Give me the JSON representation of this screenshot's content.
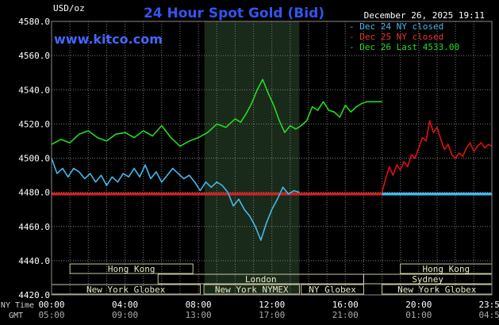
{
  "chart_data": {
    "type": "line",
    "title": "24 Hour Spot Gold (Bid)",
    "watermark": "www.kitco.com",
    "timestamp": "December 26, 2025 19:11",
    "ylabel": "USD/oz",
    "ylim": [
      4420,
      4580
    ],
    "y_ticks": [
      "4580.0",
      "4560.0",
      "4540.0",
      "4520.0",
      "4500.0",
      "4480.0",
      "4460.0",
      "4440.0",
      "4420.0"
    ],
    "x_hours": [
      0,
      4,
      8,
      12,
      16,
      20,
      23.983
    ],
    "x_ticks_ny": [
      "00:00",
      "04:00",
      "08:00",
      "12:00",
      "16:00",
      "20:00",
      "23:59"
    ],
    "x_ticks_gmt": [
      "05:00",
      "09:00",
      "13:00",
      "17:00",
      "21:00",
      "01:00",
      "04:59"
    ],
    "row_label_ny": "NY Time",
    "row_label_gmt": "GMT",
    "grid": true,
    "legend_position": "top-right",
    "highlight_hours": [
      8.33,
      13.5
    ],
    "colors": {
      "dec24": "#44b8ea",
      "dec25": "#dd1111",
      "dec26": "#22dd22",
      "baseline": "#cc2222",
      "grid": "#7a7a7a",
      "highlight": "#1a2a1a",
      "title": "#3355ee",
      "watermark": "#4466ff"
    },
    "series": [
      {
        "name": "Dec 24 NY closed",
        "key": "dec24",
        "x": [
          0,
          0.3,
          0.6,
          0.9,
          1.2,
          1.5,
          1.8,
          2.1,
          2.4,
          2.7,
          3.0,
          3.3,
          3.6,
          3.9,
          4.2,
          4.5,
          4.8,
          5.1,
          5.4,
          5.7,
          6.0,
          6.3,
          6.6,
          6.9,
          7.2,
          7.5,
          7.8,
          8.1,
          8.4,
          8.7,
          9.0,
          9.3,
          9.6,
          9.9,
          10.2,
          10.5,
          10.8,
          11.1,
          11.4,
          11.7,
          12.0,
          12.3,
          12.6,
          12.9,
          13.2,
          13.5
        ],
        "values": [
          4500,
          4491,
          4494,
          4489,
          4494,
          4492,
          4488,
          4491,
          4486,
          4490,
          4484,
          4489,
          4486,
          4491,
          4489,
          4494,
          4489,
          4496,
          4488,
          4492,
          4486,
          4490,
          4494,
          4491,
          4488,
          4490,
          4486,
          4481,
          4486,
          4483,
          4486,
          4484,
          4480,
          4472,
          4476,
          4470,
          4466,
          4460,
          4452,
          4462,
          4470,
          4476,
          4483,
          4479,
          4481,
          4480
        ]
      },
      {
        "name": "Dec 25 NY closed",
        "key": "dec25",
        "x": [
          18.0,
          18.2,
          18.4,
          18.6,
          18.8,
          19.0,
          19.2,
          19.4,
          19.6,
          19.8,
          20.0,
          20.2,
          20.4,
          20.6,
          20.8,
          21.0,
          21.2,
          21.4,
          21.6,
          21.8,
          22.0,
          22.2,
          22.4,
          22.6,
          22.8,
          23.0,
          23.2,
          23.4,
          23.6,
          23.8,
          23.983
        ],
        "values": [
          4480,
          4488,
          4495,
          4490,
          4496,
          4493,
          4498,
          4495,
          4502,
          4500,
          4506,
          4512,
          4510,
          4522,
          4515,
          4518,
          4511,
          4505,
          4508,
          4502,
          4500,
          4503,
          4501,
          4506,
          4509,
          4504,
          4507,
          4509,
          4506,
          4508,
          4507
        ]
      },
      {
        "name": "Dec 26 Last 4533.00",
        "key": "dec26",
        "x": [
          0,
          0.5,
          1.0,
          1.5,
          2.0,
          2.5,
          3.0,
          3.5,
          4.0,
          4.5,
          5.0,
          5.5,
          6.0,
          6.5,
          7.0,
          7.5,
          8.0,
          8.5,
          9.0,
          9.5,
          10.0,
          10.3,
          10.6,
          10.9,
          11.2,
          11.5,
          11.8,
          12.1,
          12.4,
          12.7,
          13.0,
          13.3,
          13.6,
          13.9,
          14.2,
          14.5,
          14.8,
          15.1,
          15.4,
          15.7,
          16.0,
          16.3,
          16.6,
          16.9,
          17.2,
          17.5,
          17.8,
          18.0
        ],
        "values": [
          4508,
          4511,
          4509,
          4514,
          4516,
          4512,
          4510,
          4514,
          4515,
          4512,
          4516,
          4513,
          4519,
          4512,
          4507,
          4510,
          4512,
          4515,
          4520,
          4518,
          4523,
          4521,
          4526,
          4532,
          4540,
          4546,
          4538,
          4531,
          4522,
          4515,
          4519,
          4517,
          4519,
          4522,
          4530,
          4528,
          4533,
          4528,
          4527,
          4524,
          4531,
          4527,
          4530,
          4532,
          4533,
          4533,
          4533,
          4533
        ]
      }
    ],
    "baselines": [
      {
        "key": "dec24",
        "value": 4479,
        "from_hour": 0,
        "to_hour": 13.5,
        "color_key": "baseline"
      },
      {
        "key": "dec24",
        "value": 4479,
        "from_hour": 13.5,
        "to_hour": 18.0,
        "color_key": "baseline"
      },
      {
        "key": "dec24",
        "value": 4479,
        "from_hour": 18.0,
        "to_hour": 23.983,
        "color_key": "dec24"
      }
    ],
    "markets": [
      {
        "label": "Hong Kong",
        "row": 0,
        "start": 1.0,
        "end": 7.7
      },
      {
        "label": "London",
        "row": 1,
        "start": 5.8,
        "end": 17.0
      },
      {
        "label": "New York Globex",
        "row": 2,
        "start": 0.0,
        "end": 8.1
      },
      {
        "label": "New York NYMEX",
        "row": 2,
        "start": 8.3,
        "end": 13.5
      },
      {
        "label": "NY Globex",
        "row": 2,
        "start": 13.6,
        "end": 17.0
      },
      {
        "label": "Hong Kong",
        "row": 0,
        "start": 19.0,
        "end": 23.983
      },
      {
        "label": "Sydney",
        "row": 1,
        "start": 17.0,
        "end": 23.983
      },
      {
        "label": "New York Globex",
        "row": 2,
        "start": 18.0,
        "end": 23.983
      }
    ]
  }
}
